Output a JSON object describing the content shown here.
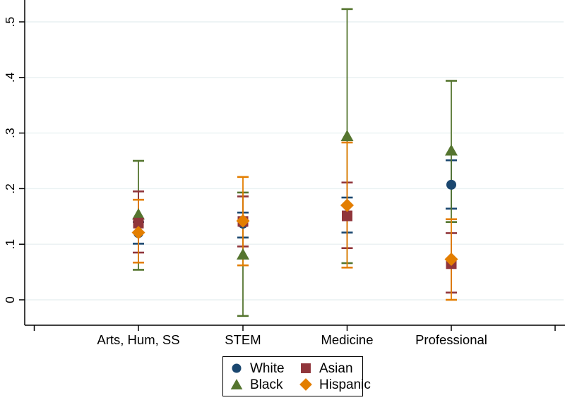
{
  "figure": {
    "background": "#ffffff",
    "axis_color": "#000000",
    "grid_color": "#e9f1f2",
    "text_color": "#000000"
  },
  "chart_data": {
    "type": "scatter",
    "subtype": "coefficient-plot-with-95ci-error-bars",
    "title": "",
    "xlabel": "",
    "ylabel": "",
    "categories": [
      "Arts, Hum, SS",
      "STEM",
      "Medicine",
      "Professional"
    ],
    "yticks": {
      "values": [
        0,
        0.1,
        0.2,
        0.3,
        0.4,
        0.5
      ],
      "labels": [
        "0",
        ".1",
        ".2",
        ".3",
        ".4",
        ".5"
      ]
    },
    "ylim": [
      -0.046,
      0.54
    ],
    "grid": true,
    "grid_orientation": "horizontal",
    "legend_position": "bottom-center",
    "series": [
      {
        "name": "White",
        "marker": "circle",
        "color": "#1a476f",
        "estimates": [
          0.12,
          0.137,
          0.152,
          0.207
        ],
        "ci_low": [
          0.101,
          0.112,
          0.121,
          0.164
        ],
        "ci_high": [
          0.14,
          0.157,
          0.184,
          0.251
        ]
      },
      {
        "name": "Black",
        "marker": "triangle",
        "color": "#55752f",
        "estimates": [
          0.154,
          0.082,
          0.295,
          0.269
        ],
        "ci_low": [
          0.054,
          -0.029,
          0.066,
          0.14
        ],
        "ci_high": [
          0.25,
          0.193,
          0.523,
          0.394
        ]
      },
      {
        "name": "Asian",
        "marker": "square",
        "color": "#90353b",
        "estimates": [
          0.138,
          0.141,
          0.151,
          0.065
        ],
        "ci_low": [
          0.085,
          0.096,
          0.093,
          0.013
        ],
        "ci_high": [
          0.195,
          0.186,
          0.211,
          0.12
        ]
      },
      {
        "name": "Hispanic",
        "marker": "diamond",
        "color": "#e37e00",
        "estimates": [
          0.121,
          0.142,
          0.17,
          0.073
        ],
        "ci_low": [
          0.067,
          0.062,
          0.058,
          0.0
        ],
        "ci_high": [
          0.18,
          0.221,
          0.283,
          0.145
        ]
      }
    ],
    "legend_order_labels": [
      "White",
      "Asian",
      "Black",
      "Hispanic"
    ]
  }
}
